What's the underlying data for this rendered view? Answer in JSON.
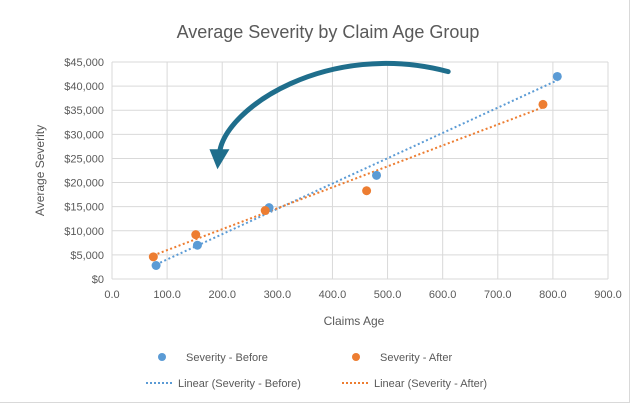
{
  "chart_data": {
    "type": "scatter",
    "title": "Average Severity by Claim Age Group",
    "xlabel": "Claims Age",
    "ylabel": "Average Severity",
    "xlim": [
      0,
      900
    ],
    "ylim": [
      0,
      45000
    ],
    "x_ticks": [
      0,
      100,
      200,
      300,
      400,
      500,
      600,
      700,
      800,
      900
    ],
    "x_tick_labels": [
      "0.0",
      "100.0",
      "200.0",
      "300.0",
      "400.0",
      "500.0",
      "600.0",
      "700.0",
      "800.0",
      "900.0"
    ],
    "y_ticks": [
      0,
      5000,
      10000,
      15000,
      20000,
      25000,
      30000,
      35000,
      40000,
      45000
    ],
    "y_tick_labels": [
      "$0",
      "$5,000",
      "$10,000",
      "$15,000",
      "$20,000",
      "$25,000",
      "$30,000",
      "$35,000",
      "$40,000",
      "$45,000"
    ],
    "grid": "both",
    "legend_position": "bottom",
    "series": [
      {
        "name": "Severity - Before",
        "color": "#5b9bd5",
        "points": [
          [
            80,
            2800
          ],
          [
            155,
            7000
          ],
          [
            285,
            14800
          ],
          [
            480,
            21500
          ],
          [
            808,
            42000
          ]
        ]
      },
      {
        "name": "Severity - After",
        "color": "#ed7d31",
        "points": [
          [
            75,
            4600
          ],
          [
            152,
            9200
          ],
          [
            278,
            14200
          ],
          [
            462,
            18300
          ],
          [
            782,
            36200
          ]
        ]
      }
    ],
    "trendlines": [
      {
        "name": "Linear (Severity - Before)",
        "color": "#5b9bd5",
        "from": [
          80,
          3000
        ],
        "to": [
          808,
          41200
        ]
      },
      {
        "name": "Linear (Severity - After)",
        "color": "#ed7d31",
        "from": [
          75,
          4900
        ],
        "to": [
          782,
          35600
        ]
      }
    ],
    "annotation": {
      "type": "curved-arrow",
      "color": "#1f6e8c",
      "from": [
        610,
        43000
      ],
      "to": [
        195,
        24000
      ]
    }
  }
}
